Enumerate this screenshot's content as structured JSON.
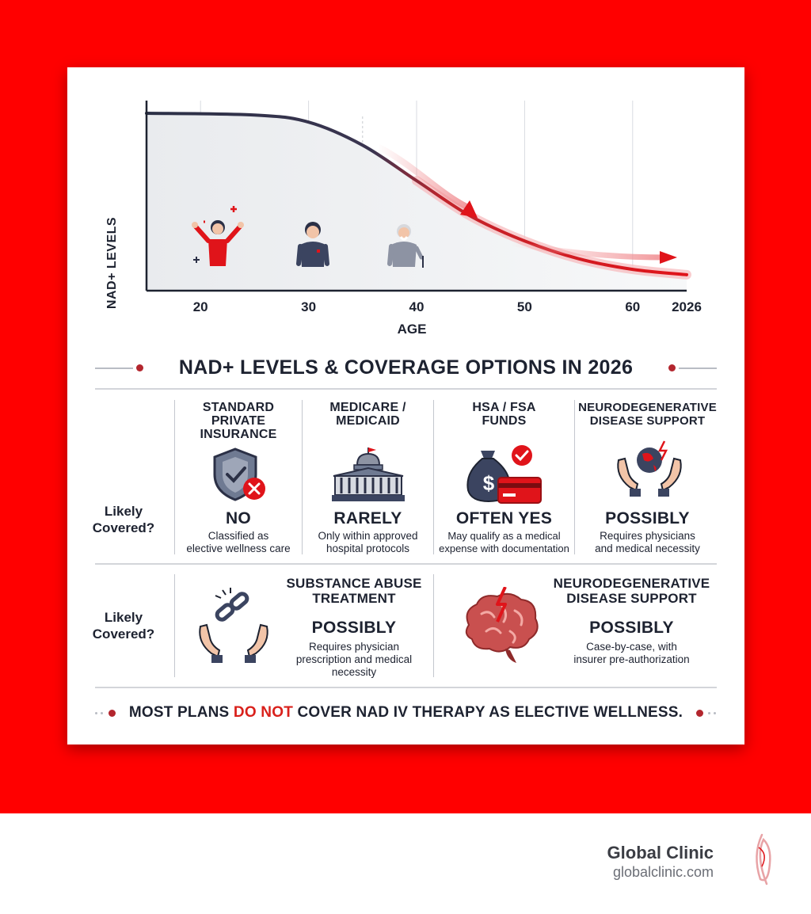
{
  "chart_data": {
    "type": "line",
    "ylabel": "NAD+ LEVELS",
    "xlabel": "AGE",
    "x_ticks": [
      "20",
      "30",
      "40",
      "50",
      "60",
      "2026"
    ],
    "x": [
      20,
      25,
      30,
      35,
      40,
      45,
      50,
      55,
      60,
      65
    ],
    "series": [
      {
        "values": [
          100,
          99,
          95,
          82,
          62,
          42,
          28,
          18,
          12,
          9
        ]
      }
    ],
    "colors": {
      "line_start": "#2b3046",
      "line_end": "#e0141a",
      "area": "#eceef1"
    },
    "grid": true
  },
  "figures": [
    {
      "age": "20",
      "icon": "cheering-young-person-icon"
    },
    {
      "age": "30",
      "icon": "adult-person-icon"
    },
    {
      "age": "40",
      "icon": "elderly-person-with-cane-icon"
    }
  ],
  "heading": "NAD+ LEVELS & COVERAGE OPTIONS IN 2026",
  "row_label_1": "Likely\nCovered?",
  "row_label_2": "Likely\nCovered?",
  "row1": [
    {
      "title": "STANDARD\nPRIVATE\nINSURANCE",
      "answer": "NO",
      "desc": "Classified as\nelective wellness care",
      "icon": "shield-with-x-icon"
    },
    {
      "title": "MEDICARE /\nMEDICAID",
      "answer": "RARELY",
      "desc": "Only within approved\nhospital protocols",
      "icon": "government-building-icon"
    },
    {
      "title": "HSA / FSA\nFUNDS",
      "answer": "OFTEN YES",
      "desc": "May qualify as a medical\nexpense with documentation",
      "icon": "money-bag-and-card-icon"
    },
    {
      "title": "NEURODEGENERATIVE\nDISEASE SUPPORT",
      "answer": "POSSIBLY",
      "desc": "Requires physicians\nand medical necessity",
      "icon": "hands-holding-globe-icon"
    }
  ],
  "row2": [
    {
      "title": "SUBSTANCE ABUSE\nTREATMENT",
      "answer": "POSSIBLY",
      "desc": "Requires physician\nprescription and medical\nnecessity",
      "icon": "hands-broken-chain-icon"
    },
    {
      "title": "NEURODEGENERATIVE\nDISEASE SUPPORT",
      "answer": "POSSIBLY",
      "desc": "Case-by-case, with\ninsurer pre-authorization",
      "icon": "brain-lightning-icon"
    }
  ],
  "footer": {
    "before": "MOST PLANS ",
    "highlight": "DO NOT",
    "after": " COVER NAD IV THERAPY AS ELECTIVE WELLNESS."
  },
  "brand": {
    "name": "Global Clinic",
    "url": "globalclinic.com"
  },
  "colors": {
    "background": "#ff0000",
    "accent": "#d9201b",
    "dark": "#2b3046"
  }
}
